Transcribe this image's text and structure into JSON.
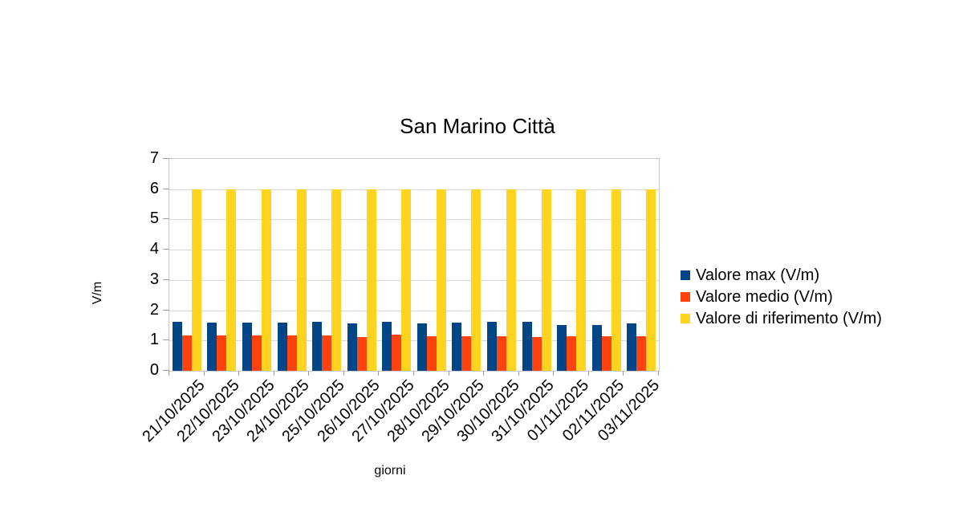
{
  "chart_data": {
    "type": "bar",
    "title": "San Marino Città",
    "xlabel": "giorni",
    "ylabel": "V/m",
    "ylim": [
      0,
      7
    ],
    "ytick_step": 1,
    "grid": true,
    "legend_position": "right",
    "categories": [
      "21/10/2025",
      "22/10/2025",
      "23/10/2025",
      "24/10/2025",
      "25/10/2025",
      "26/10/2025",
      "27/10/2025",
      "28/10/2025",
      "29/10/2025",
      "30/10/2025",
      "31/10/2025",
      "01/11/2025",
      "02/11/2025",
      "03/11/2025"
    ],
    "series": [
      {
        "name": "Valore max (V/m)",
        "color": "#004586",
        "values": [
          1.61,
          1.59,
          1.6,
          1.58,
          1.62,
          1.57,
          1.62,
          1.57,
          1.59,
          1.62,
          1.63,
          1.52,
          1.51,
          1.57
        ]
      },
      {
        "name": "Valore medio (V/m)",
        "color": "#FF420E",
        "values": [
          1.17,
          1.16,
          1.16,
          1.16,
          1.16,
          1.11,
          1.2,
          1.15,
          1.14,
          1.13,
          1.12,
          1.15,
          1.13,
          1.14
        ]
      },
      {
        "name": "Valore di riferimento (V/m)",
        "color": "#FFD320",
        "values": [
          6,
          6,
          6,
          6,
          6,
          6,
          6,
          6,
          6,
          6,
          6,
          6,
          6,
          6
        ]
      }
    ]
  },
  "colors": {
    "background": "#FFFFFF",
    "text": "#000000",
    "gridline": "#D9D9D9",
    "plot_border": "#C9C9C9",
    "tick": "#9E9E9E"
  }
}
